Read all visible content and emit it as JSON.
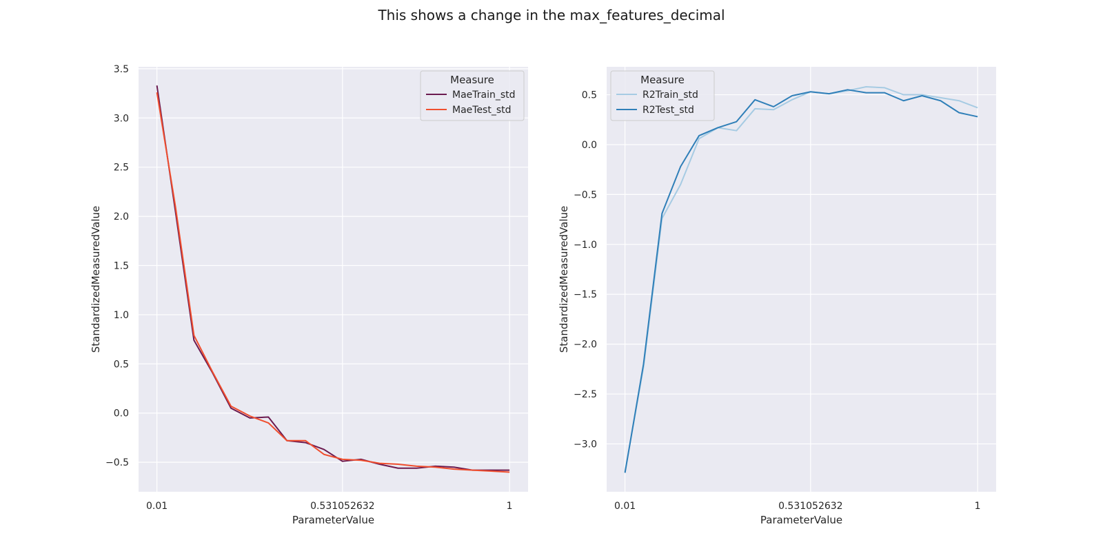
{
  "figure": {
    "suptitle": "This shows a change in the max_features_decimal",
    "background": "#ffffff",
    "plot_background": "#eaeaf2",
    "grid_color": "#ffffff"
  },
  "chart_data": [
    {
      "type": "line",
      "xlabel": "ParameterValue",
      "ylabel": "StandardizedMeasuredValue",
      "xlim": [
        -0.0415,
        1.052
      ],
      "ylim": [
        -0.8,
        3.52
      ],
      "xticks": [
        {
          "value": 0.01,
          "label": "0.01"
        },
        {
          "value": 0.531052632,
          "label": "0.531052632"
        },
        {
          "value": 1.0,
          "label": "1"
        }
      ],
      "yticks": [
        {
          "value": 3.5,
          "label": "3.5"
        },
        {
          "value": 3.0,
          "label": "3.0"
        },
        {
          "value": 2.5,
          "label": "2.5"
        },
        {
          "value": 2.0,
          "label": "2.0"
        },
        {
          "value": 1.5,
          "label": "1.5"
        },
        {
          "value": 1.0,
          "label": "1.0"
        },
        {
          "value": 0.5,
          "label": "0.5"
        },
        {
          "value": 0.0,
          "label": "0.0"
        },
        {
          "value": -0.5,
          "label": "−0.5"
        }
      ],
      "grid": true,
      "legend": {
        "title": "Measure",
        "placement": "upper right"
      },
      "x": [
        0.01,
        0.062,
        0.114,
        0.166,
        0.218,
        0.271,
        0.323,
        0.375,
        0.427,
        0.479,
        0.531,
        0.583,
        0.635,
        0.687,
        0.739,
        0.792,
        0.844,
        0.896,
        0.948,
        1.0
      ],
      "series": [
        {
          "name": "MaeTrain_std",
          "color": "#6b1a4f",
          "values": [
            3.33,
            2.05,
            0.74,
            0.41,
            0.05,
            -0.05,
            -0.04,
            -0.28,
            -0.3,
            -0.37,
            -0.49,
            -0.47,
            -0.52,
            -0.56,
            -0.56,
            -0.54,
            -0.55,
            -0.58,
            -0.58,
            -0.58
          ]
        },
        {
          "name": "MaeTest_std",
          "color": "#f04e2e",
          "values": [
            3.26,
            2.1,
            0.79,
            0.42,
            0.07,
            -0.03,
            -0.1,
            -0.28,
            -0.28,
            -0.42,
            -0.47,
            -0.48,
            -0.51,
            -0.52,
            -0.54,
            -0.55,
            -0.57,
            -0.58,
            -0.59,
            -0.6
          ]
        }
      ]
    },
    {
      "type": "line",
      "xlabel": "ParameterValue",
      "ylabel": "StandardizedMeasuredValue",
      "xlim": [
        -0.0415,
        1.052
      ],
      "ylim": [
        -3.48,
        0.78
      ],
      "xticks": [
        {
          "value": 0.01,
          "label": "0.01"
        },
        {
          "value": 0.531052632,
          "label": "0.531052632"
        },
        {
          "value": 1.0,
          "label": "1"
        }
      ],
      "yticks": [
        {
          "value": 0.5,
          "label": "0.5"
        },
        {
          "value": 0.0,
          "label": "0.0"
        },
        {
          "value": -0.5,
          "label": "−0.5"
        },
        {
          "value": -1.0,
          "label": "−1.0"
        },
        {
          "value": -1.5,
          "label": "−1.5"
        },
        {
          "value": -2.0,
          "label": "−2.0"
        },
        {
          "value": -2.5,
          "label": "−2.5"
        },
        {
          "value": -3.0,
          "label": "−3.0"
        }
      ],
      "grid": true,
      "legend": {
        "title": "Measure",
        "placement": "upper left"
      },
      "x": [
        0.01,
        0.062,
        0.114,
        0.166,
        0.218,
        0.271,
        0.323,
        0.375,
        0.427,
        0.479,
        0.531,
        0.583,
        0.635,
        0.687,
        0.739,
        0.792,
        0.844,
        0.896,
        0.948,
        1.0
      ],
      "series": [
        {
          "name": "R2Train_std",
          "color": "#a6cbe3",
          "values": [
            -3.28,
            -2.23,
            -0.74,
            -0.4,
            0.06,
            0.17,
            0.14,
            0.36,
            0.35,
            0.45,
            0.53,
            0.51,
            0.54,
            0.58,
            0.57,
            0.5,
            0.5,
            0.47,
            0.44,
            0.37
          ]
        },
        {
          "name": "R2Test_std",
          "color": "#2f7fb8",
          "values": [
            -3.29,
            -2.2,
            -0.69,
            -0.22,
            0.09,
            0.17,
            0.23,
            0.45,
            0.38,
            0.49,
            0.53,
            0.51,
            0.55,
            0.52,
            0.52,
            0.44,
            0.49,
            0.44,
            0.32,
            0.28
          ]
        }
      ]
    }
  ]
}
